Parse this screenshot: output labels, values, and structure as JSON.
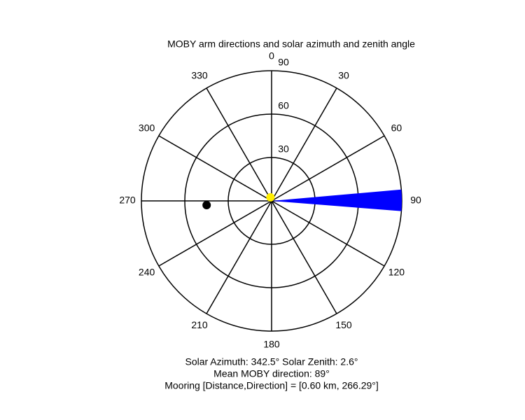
{
  "chart_data": {
    "type": "polar",
    "title": "MOBY arm directions and solar azimuth and zenith angle",
    "thetaticks": [
      0,
      30,
      60,
      90,
      120,
      150,
      180,
      210,
      240,
      270,
      300,
      330
    ],
    "rlim": [
      0,
      90
    ],
    "rticks": [
      30,
      60,
      90
    ],
    "wedge": {
      "theta_min": 85,
      "theta_max": 94.5,
      "r": 90,
      "color": "#0000ff"
    },
    "points": [
      {
        "theta": 342.5,
        "r": 2.6,
        "color": "#ffee00"
      },
      {
        "theta": 266.29,
        "r": 45,
        "color": "#000000"
      }
    ],
    "notes": [
      "Solar Azimuth: 342.5° Solar Zenith: 2.6°",
      "Mean MOBY direction: 89°",
      "Mooring [Distance,Direction] = [0.60 km, 266.29°]"
    ]
  }
}
